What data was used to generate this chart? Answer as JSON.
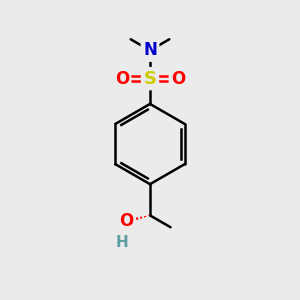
{
  "background_color": "#ebebeb",
  "atom_colors": {
    "C": "#000000",
    "N": "#0000cc",
    "O": "#ff0000",
    "S": "#cccc00",
    "H": "#5f9ea0"
  },
  "bond_color": "#000000",
  "bond_lw": 1.8
}
